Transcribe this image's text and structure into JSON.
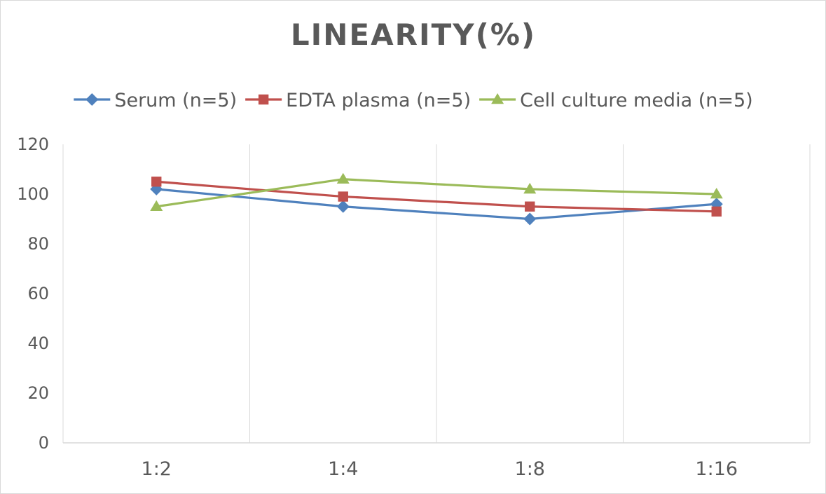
{
  "chart_data": {
    "type": "line",
    "title": "LINEARITY(%)",
    "xlabel": "",
    "ylabel": "",
    "categories": [
      "1:2",
      "1:4",
      "1:8",
      "1:16"
    ],
    "ylim": [
      0,
      120
    ],
    "y_ticks": [
      0,
      20,
      40,
      60,
      80,
      100,
      120
    ],
    "grid": "vertical",
    "legend_position": "top",
    "series": [
      {
        "name": "Serum (n=5)",
        "values": [
          102,
          95,
          90,
          96
        ],
        "color": "#4f81bd",
        "marker": "diamond"
      },
      {
        "name": "EDTA plasma (n=5)",
        "values": [
          105,
          99,
          95,
          93
        ],
        "color": "#c0504d",
        "marker": "square"
      },
      {
        "name": "Cell culture media (n=5)",
        "values": [
          95,
          106,
          102,
          100
        ],
        "color": "#9bbb59",
        "marker": "triangle"
      }
    ]
  }
}
